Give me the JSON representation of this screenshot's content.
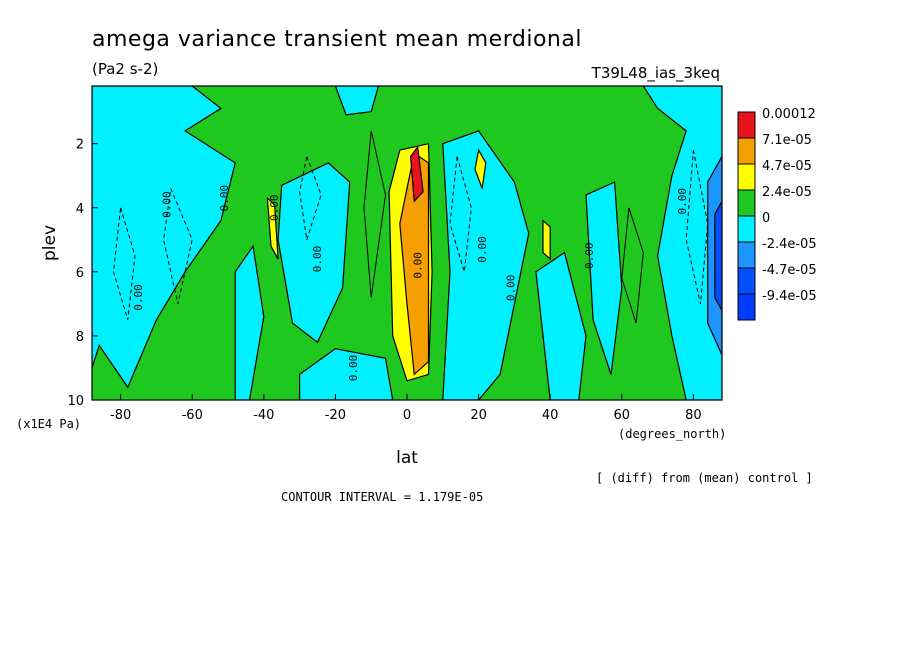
{
  "chart_data": {
    "type": "heatmap",
    "title": "amega variance transient mean merdional",
    "units_label": "(Pa2 s-2)",
    "experiment_label": "T39L48_ias_3keq",
    "xlabel": "lat",
    "x_units": "(degrees_north)",
    "ylabel": "plev",
    "y_units": "(x1E4 Pa)",
    "xlim": [
      -88,
      88
    ],
    "ylim": [
      10,
      0.2
    ],
    "x_ticks": [
      -80,
      -60,
      -40,
      -20,
      0,
      20,
      40,
      60,
      80
    ],
    "x_tick_labels": [
      "-80",
      "-60",
      "-40",
      "-20",
      "0",
      "20",
      "40",
      "60",
      "80"
    ],
    "y_ticks": [
      2,
      4,
      6,
      8,
      10
    ],
    "y_tick_labels": [
      "2",
      "4",
      "6",
      "8",
      "10"
    ],
    "legend": {
      "position": "right",
      "levels": [
        "0.00012",
        "7.1e-05",
        "4.7e-05",
        "2.4e-05",
        "0",
        "-2.4e-05",
        "-4.7e-05",
        "-9.4e-05"
      ],
      "colors": [
        "#e8141c",
        "#f5a000",
        "#ffff00",
        "#1ec81e",
        "#00f0ff",
        "#1e96ff",
        "#0050ff",
        "#003cff"
      ]
    },
    "background_color": "#1ec81e",
    "contour_line_labels": [
      "0.00",
      "0.00",
      "0.00",
      "0.00",
      "0.00",
      "0.00",
      "0.00",
      "0.00",
      "0.00",
      "0.00",
      "0.00"
    ],
    "footer_note": "[ (diff) from (mean) control ]",
    "contour_interval": "CONTOUR INTERVAL = 1.179E-05"
  }
}
